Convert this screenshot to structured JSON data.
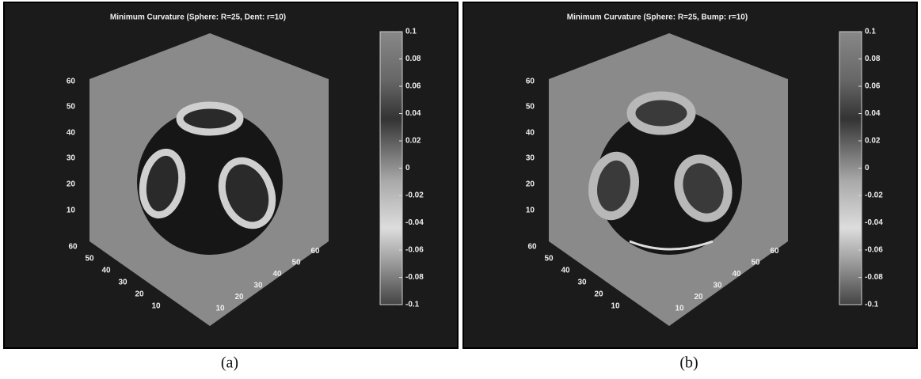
{
  "panels": [
    {
      "title": "Minimum Curvature (Sphere: R=25, Dent: r=10)",
      "z_ticks": [
        60,
        50,
        40,
        30,
        20,
        10
      ],
      "x_ticks": [
        60,
        50,
        40,
        30,
        20,
        10
      ],
      "y_ticks": [
        10,
        20,
        30,
        40,
        50,
        60
      ],
      "colorbar_ticks": [
        0.1,
        0.08,
        0.06,
        0.04,
        0.02,
        0,
        -0.02,
        -0.04,
        -0.06,
        -0.08,
        -0.1
      ],
      "caption": "(a)"
    },
    {
      "title": "Minimum Curvature (Sphere: R=25, Bump: r=10)",
      "z_ticks": [
        60,
        50,
        40,
        30,
        20,
        10
      ],
      "x_ticks": [
        60,
        50,
        40,
        30,
        20,
        10
      ],
      "y_ticks": [
        10,
        20,
        30,
        40,
        50,
        60
      ],
      "colorbar_ticks": [
        0.1,
        0.08,
        0.06,
        0.04,
        0.02,
        0,
        -0.02,
        -0.04,
        -0.06,
        -0.08,
        -0.1
      ],
      "caption": "(b)"
    }
  ]
}
